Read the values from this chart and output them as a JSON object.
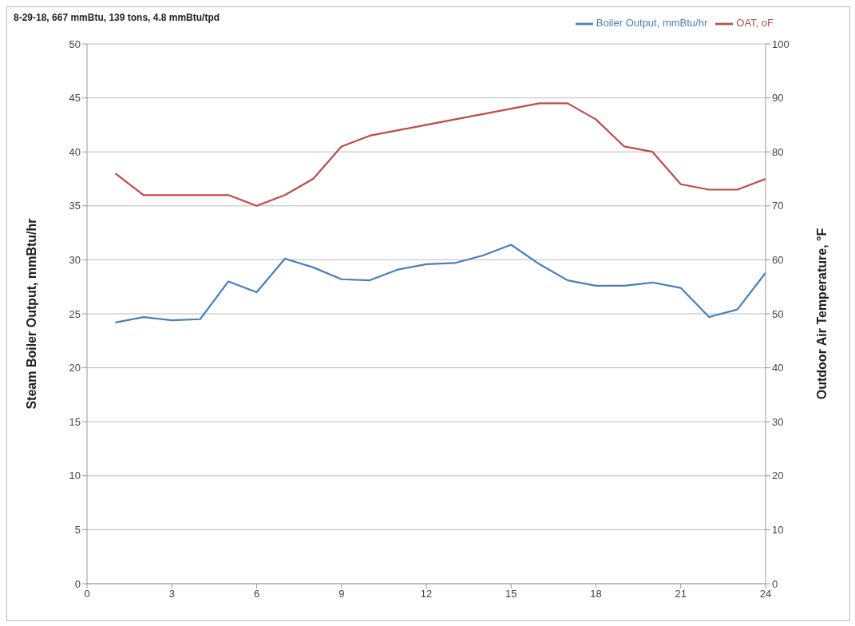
{
  "chart_data": {
    "type": "line",
    "title": "8-29-18, 667 mmBtu, 139 tons, 4.8 mmBtu/tpd",
    "ylabel": "Steam Boiler Output, mmBtu/hr",
    "y2label": "Outdoor Air Temperature, °F",
    "x": [
      1,
      2,
      3,
      4,
      5,
      6,
      7,
      8,
      9,
      10,
      11,
      12,
      13,
      14,
      15,
      16,
      17,
      18,
      19,
      20,
      21,
      22,
      23,
      24
    ],
    "series": [
      {
        "name": "Boiler Output, mmBtu/hr",
        "color": "#4a7ebb",
        "values": [
          24.2,
          24.7,
          24.4,
          24.5,
          28,
          27,
          30.1,
          29.3,
          28.2,
          28.1,
          29.1,
          29.6,
          29.7,
          30.4,
          31.4,
          29.6,
          28.1,
          27.6,
          27.6,
          27.9,
          27.4,
          24.7,
          25.4,
          28.8
        ]
      },
      {
        "name": "OAT, oF",
        "color": "#be4b48",
        "axis": "y2",
        "values": [
          76,
          72,
          72,
          72,
          72,
          70,
          72,
          75,
          81,
          83,
          84,
          85,
          86,
          87,
          88,
          89,
          89,
          86,
          81,
          80,
          74,
          73,
          73,
          75
        ]
      }
    ],
    "xlim": [
      0,
      24
    ],
    "xticks": [
      0,
      3,
      6,
      9,
      12,
      15,
      18,
      21,
      24
    ],
    "ylim": [
      0,
      50
    ],
    "yticks": [
      0,
      5,
      10,
      15,
      20,
      25,
      30,
      35,
      40,
      45,
      50
    ],
    "y2lim": [
      0,
      100
    ],
    "y2ticks": [
      0,
      10,
      20,
      30,
      40,
      50,
      60,
      70,
      80,
      90,
      100
    ],
    "grid": "y",
    "legend": "top right",
    "marker": "none",
    "line_style": "solid"
  }
}
